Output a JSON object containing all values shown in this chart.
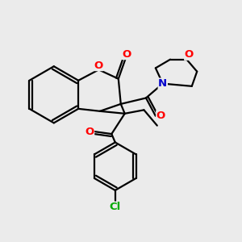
{
  "bg_color": "#ebebeb",
  "bond_color": "#000000",
  "bond_width": 1.6,
  "atom_colors": {
    "O": "#ff0000",
    "N": "#0000cc",
    "Cl": "#00aa00",
    "C": "#000000"
  },
  "font_size_atom": 9.5,
  "fig_bg": "#ebebeb",
  "xlim": [
    0,
    10
  ],
  "ylim": [
    0,
    10
  ]
}
